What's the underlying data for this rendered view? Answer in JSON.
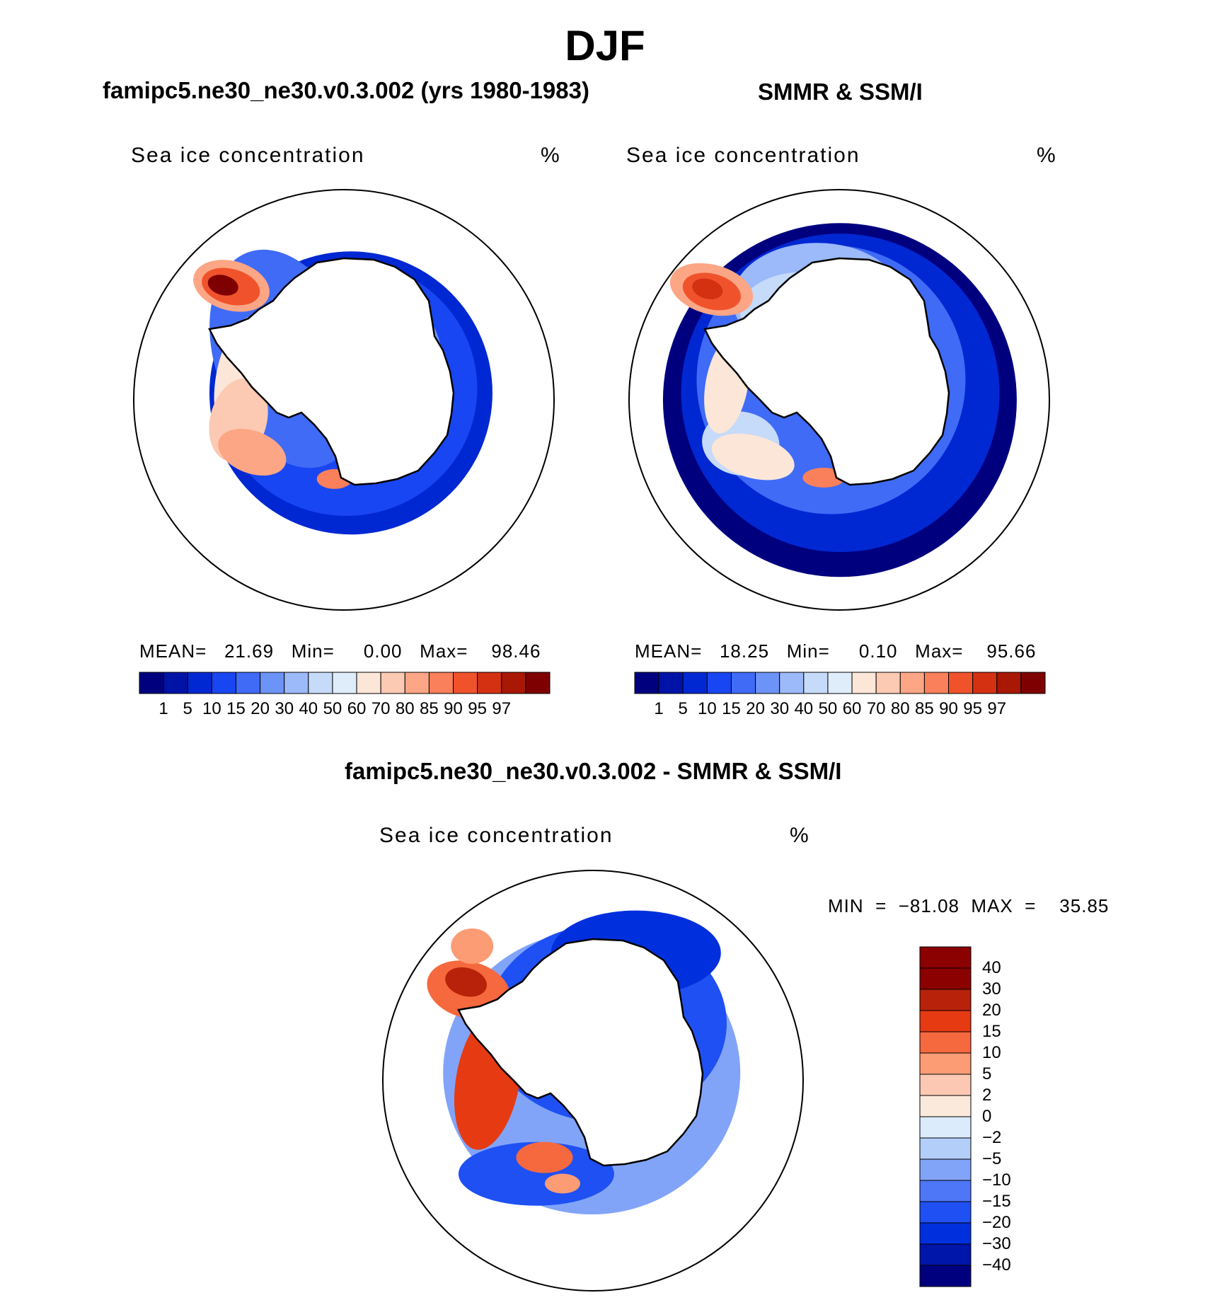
{
  "figure": {
    "title": "DJF",
    "colors": {
      "levels_palette": [
        "#00007f",
        "#0013a7",
        "#0028d2",
        "#1846f2",
        "#3f6bf6",
        "#6c93f8",
        "#9cb9f9",
        "#c6daf9",
        "#dfedfb",
        "#fbe6d8",
        "#fcc9b3",
        "#fca686",
        "#f9805a",
        "#f0532c",
        "#d43112",
        "#a91705",
        "#7f0000"
      ],
      "diff_palette": [
        "#00007f",
        "#0015aa",
        "#0030dd",
        "#1e50f4",
        "#4d77f6",
        "#82a4f8",
        "#b3cef9",
        "#dcebfb",
        "#fbeadb",
        "#fcc8b3",
        "#fc9c75",
        "#f6693e",
        "#e63a12",
        "#b8220a",
        "#8b0000"
      ]
    }
  },
  "panels": {
    "model": {
      "title": "famipc5.ne30_ne30.v0.3.002 (yrs 1980-1983)",
      "subtitle_left": "Sea ice concentration",
      "subtitle_right": "%",
      "stats": "MEAN=   21.69   Min=     0.00   Max=    98.46",
      "colorbar_ticks": [
        "1",
        "5",
        "10",
        "15",
        "20",
        "30",
        "40",
        "50",
        "60",
        "70",
        "80",
        "85",
        "90",
        "95",
        "97"
      ]
    },
    "obs": {
      "title": "SMMR & SSM/I",
      "subtitle_left": "Sea ice concentration",
      "subtitle_right": "%",
      "stats": "MEAN=   18.25   Min=     0.10   Max=    95.66",
      "colorbar_ticks": [
        "1",
        "5",
        "10",
        "15",
        "20",
        "30",
        "40",
        "50",
        "60",
        "70",
        "80",
        "85",
        "90",
        "95",
        "97"
      ]
    },
    "diff": {
      "title": "famipc5.ne30_ne30.v0.3.002 - SMMR & SSM/I",
      "subtitle_left": "Sea ice concentration",
      "subtitle_right": "%",
      "stats": "MIN  =  −81.08  MAX  =    35.85",
      "colorbar_ticks": [
        "40",
        "30",
        "20",
        "15",
        "10",
        "5",
        "2",
        "0",
        "−2",
        "−5",
        "−10",
        "−15",
        "−20",
        "−30",
        "−40"
      ]
    }
  }
}
